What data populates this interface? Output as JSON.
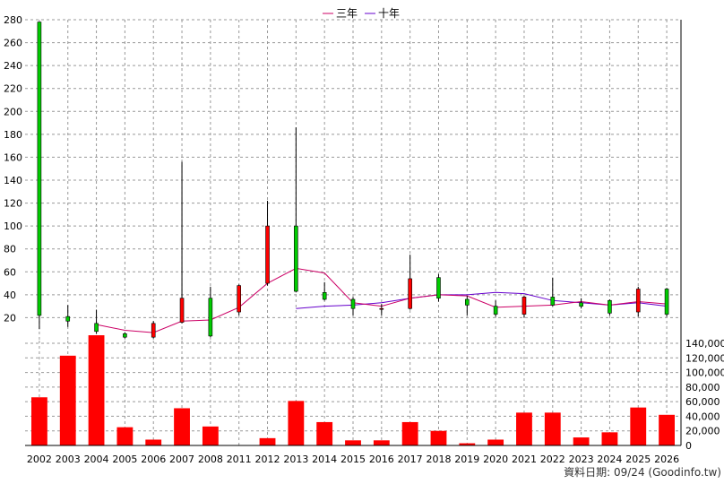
{
  "legend": {
    "ma3_label": "三年",
    "ma10_label": "十年"
  },
  "source_text": "資料日期: 09/24  (Goodinfo.tw)",
  "colors": {
    "up": "#ff0000",
    "down": "#00cc00",
    "ma3": "#cc0066",
    "ma10": "#6600cc",
    "grid": "#999999",
    "volume": "#ff0000"
  },
  "chart_data": {
    "type": "candlestick+bar",
    "categories": [
      "2002",
      "2003",
      "2004",
      "2005",
      "2006",
      "2007",
      "2008",
      "2011",
      "2012",
      "2013",
      "2014",
      "2015",
      "2016",
      "2017",
      "2018",
      "2019",
      "2020",
      "2021",
      "2022",
      "2023",
      "2024",
      "2025",
      "2026"
    ],
    "price": {
      "ylim": [
        0,
        280
      ],
      "ticks": [
        20,
        40,
        60,
        80,
        100,
        120,
        140,
        160,
        180,
        200,
        220,
        240,
        260,
        280
      ],
      "candles": [
        {
          "o": 278,
          "c": 22,
          "h": 278,
          "l": 10
        },
        {
          "o": 21,
          "c": 17,
          "h": 31,
          "l": 12
        },
        {
          "o": 15,
          "c": 8,
          "h": 27,
          "l": 6
        },
        {
          "o": 6,
          "c": 3,
          "h": 7,
          "l": 2
        },
        {
          "o": 3,
          "c": 15,
          "h": 17,
          "l": 2
        },
        {
          "o": 16,
          "c": 37,
          "h": 156,
          "l": 15
        },
        {
          "o": 37,
          "c": 4,
          "h": 47,
          "l": 3
        },
        {
          "o": 25,
          "c": 48,
          "h": 49,
          "l": 22
        },
        {
          "o": 50,
          "c": 100,
          "h": 122,
          "l": 48
        },
        {
          "o": 100,
          "c": 43,
          "h": 186,
          "l": 42
        },
        {
          "o": 42,
          "c": 36,
          "h": 51,
          "l": 35
        },
        {
          "o": 36,
          "c": 28,
          "h": 38,
          "l": 22
        },
        {
          "o": 28,
          "c": 28,
          "h": 32,
          "l": 22
        },
        {
          "o": 28,
          "c": 54,
          "h": 75,
          "l": 27
        },
        {
          "o": 55,
          "c": 37,
          "h": 58,
          "l": 34
        },
        {
          "o": 36,
          "c": 31,
          "h": 39,
          "l": 22
        },
        {
          "o": 30,
          "c": 23,
          "h": 35,
          "l": 21
        },
        {
          "o": 23,
          "c": 38,
          "h": 39,
          "l": 20
        },
        {
          "o": 38,
          "c": 31,
          "h": 55,
          "l": 30
        },
        {
          "o": 33,
          "c": 30,
          "h": 37,
          "l": 28
        },
        {
          "o": 35,
          "c": 24,
          "h": 36,
          "l": 22
        },
        {
          "o": 25,
          "c": 45,
          "h": 47,
          "l": 21
        },
        {
          "o": 45,
          "c": 23,
          "h": 46,
          "l": 21
        }
      ],
      "ma3": [
        null,
        null,
        14,
        9,
        7,
        17,
        18,
        29,
        50,
        63,
        59,
        33,
        30,
        37,
        40,
        39,
        29,
        30,
        31,
        34,
        31,
        34,
        32
      ],
      "ma10": [
        null,
        null,
        null,
        null,
        null,
        null,
        null,
        null,
        null,
        28,
        30,
        31,
        33,
        37,
        40,
        40,
        42,
        41,
        35,
        33,
        31,
        33,
        30
      ]
    },
    "volume": {
      "ylim": [
        0,
        140000
      ],
      "ticks": [
        0,
        20000,
        40000,
        60000,
        80000,
        100000,
        120000,
        140000
      ],
      "tick_labels": [
        "0",
        "20,000",
        "40,000",
        "60,000",
        "80,000",
        "100,000",
        "120,000",
        "140,000"
      ],
      "values": [
        66000,
        123000,
        151000,
        25000,
        8000,
        51000,
        26000,
        0,
        10000,
        61000,
        32000,
        7000,
        7000,
        32000,
        20000,
        3000,
        8000,
        45000,
        45000,
        11000,
        18000,
        52000,
        42000
      ]
    }
  }
}
